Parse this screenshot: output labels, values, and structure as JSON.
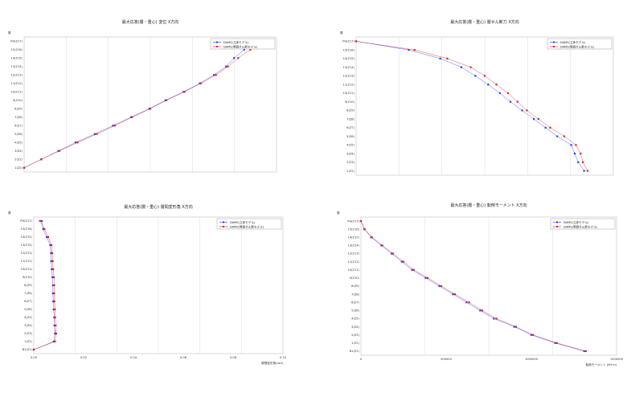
{
  "chart_data": [
    {
      "type": "line",
      "title": "最大応答(層・重心) 変位 X方向",
      "ylabel": "層",
      "legend": [
        "DAMS(立体モデル)",
        "DAMS(等価せん断モデル)"
      ],
      "floors": [
        "1(Z2)",
        "2(Z2)",
        "3(Z4)",
        "4(Z5)",
        "5(Z6)",
        "6(Z7)",
        "7(Z8)",
        "8(Z9)",
        "9(Z10)",
        "10(Z11)",
        "11(Z12)",
        "12(Z13)",
        "13(Z14)",
        "14(Z15)",
        "15(Z16)",
        "PH(Z17)"
      ],
      "series": [
        {
          "name": "DAMS(立体モデル)",
          "color": "#1f3fff",
          "values": [
            0,
            0.085,
            0.17,
            0.255,
            0.35,
            0.44,
            0.53,
            0.62,
            0.7,
            0.79,
            0.87,
            0.94,
            1.0,
            1.04,
            1.09,
            1.13
          ]
        },
        {
          "name": "DAMS(等価せん断モデル)",
          "color": "#e02020",
          "values": [
            0,
            0.085,
            0.175,
            0.265,
            0.36,
            0.45,
            0.535,
            0.625,
            0.705,
            0.795,
            0.875,
            0.95,
            1.01,
            1.06,
            1.12,
            1.16
          ]
        }
      ],
      "legend_position": "top-right"
    },
    {
      "type": "line",
      "title": "最大応答(層・重心) 層せん断力 X方向",
      "ylabel": "層",
      "legend": [
        "DAMS(立体モデル)",
        "DAMS(等価せん断モデル)"
      ],
      "floors": [
        "1(Z2)",
        "2(Z3)",
        "3(Z4)",
        "4(Z5)",
        "5(Z6)",
        "6(Z7)",
        "7(Z8)",
        "8(Z9)",
        "9(Z10)",
        "10(Z11)",
        "11(Z12)",
        "12(Z13)",
        "13(Z14)",
        "14(Z15)",
        "15(Z16)",
        "PH(Z17)"
      ],
      "series": [
        {
          "name": "DAMS(立体モデル)",
          "color": "#1f3fff",
          "values": [
            1.95,
            1.9,
            1.87,
            1.84,
            1.72,
            1.62,
            1.52,
            1.42,
            1.32,
            1.23,
            1.13,
            1.02,
            0.9,
            0.72,
            0.45,
            0
          ]
        },
        {
          "name": "DAMS(等価せん断モデル)",
          "color": "#e02020",
          "values": [
            1.98,
            1.94,
            1.92,
            1.88,
            1.78,
            1.66,
            1.56,
            1.46,
            1.38,
            1.3,
            1.2,
            1.1,
            0.98,
            0.78,
            0.5,
            0
          ]
        }
      ],
      "legend_position": "top-right"
    },
    {
      "type": "line",
      "title": "最大応答(層・重心) 層間変形角 X方向",
      "ylabel": "層",
      "xlabel": "層間変形角(rad)",
      "legend": [
        "DAMS(立体モデル)",
        "DAMS(等価せん断モデル)"
      ],
      "floors": [
        "B1(Z1)",
        "1(Z2)",
        "2(Z3)",
        "3(Z4)",
        "4(Z5)",
        "5(Z6)",
        "6(Z7)",
        "7(Z8)",
        "8(Z9)",
        "9(Z10)",
        "10(Z11)",
        "11(Z12)",
        "12(Z13)",
        "13(Z14)",
        "14(Z15)",
        "15(Z16)",
        "PH(Z17)"
      ],
      "x_ticks": [
        "0.00",
        "0.02",
        "0.04",
        "0.06",
        "0.08",
        "0.10"
      ],
      "xlim": [
        0,
        0.1
      ],
      "series": [
        {
          "name": "DAMS(立体モデル)",
          "color": "#1f3fff",
          "values": [
            0,
            0.008,
            0.0085,
            0.0083,
            0.0082,
            0.008,
            0.0078,
            0.0077,
            0.0077,
            0.0075,
            0.0072,
            0.007,
            0.0069,
            0.0066,
            0.0052,
            0.0038,
            0.0032
          ]
        },
        {
          "name": "DAMS(等価せん断モデル)",
          "color": "#e02020",
          "values": [
            0,
            0.0085,
            0.009,
            0.0088,
            0.0086,
            0.0085,
            0.0083,
            0.0082,
            0.0082,
            0.0081,
            0.0078,
            0.0076,
            0.0074,
            0.0071,
            0.0058,
            0.0043,
            0.0025
          ]
        }
      ],
      "legend_position": "top-right"
    },
    {
      "type": "line",
      "title": "最大応答(層・重心) 転倒モーメント X方向",
      "ylabel": "層",
      "xlabel": "転倒モーメント (kN·m)",
      "legend": [
        "DAMS(立体モデル)",
        "DAMS(等価せん断モデル)"
      ],
      "floors": [
        "B1(Z1)",
        "1(Z2)",
        "2(Z3)",
        "3(Z4)",
        "4(Z5)",
        "5(Z6)",
        "6(Z7)",
        "7(Z8)",
        "8(Z9)",
        "9(Z10)",
        "10(Z11)",
        "11(Z12)",
        "12(Z13)",
        "13(Z14)",
        "14(Z15)",
        "15(Z16)",
        "PH(Z17)"
      ],
      "x_ticks": [
        "0",
        "500000",
        "1000000",
        "1500000"
      ],
      "xlim": [
        0,
        1500000
      ],
      "series": [
        {
          "name": "DAMS(立体モデル)",
          "color": "#1f3fff",
          "values": [
            1310000,
            1140000,
            1000000,
            900000,
            780000,
            700000,
            620000,
            540000,
            460000,
            380000,
            300000,
            240000,
            180000,
            120000,
            60000,
            20000,
            0
          ]
        },
        {
          "name": "DAMS(等価せん断モデル)",
          "color": "#e02020",
          "values": [
            1320000,
            1150000,
            1010000,
            910000,
            795000,
            712000,
            635000,
            552000,
            472000,
            392000,
            310000,
            250000,
            188000,
            126000,
            65000,
            22000,
            0
          ]
        }
      ],
      "legend_position": "top-right"
    }
  ]
}
